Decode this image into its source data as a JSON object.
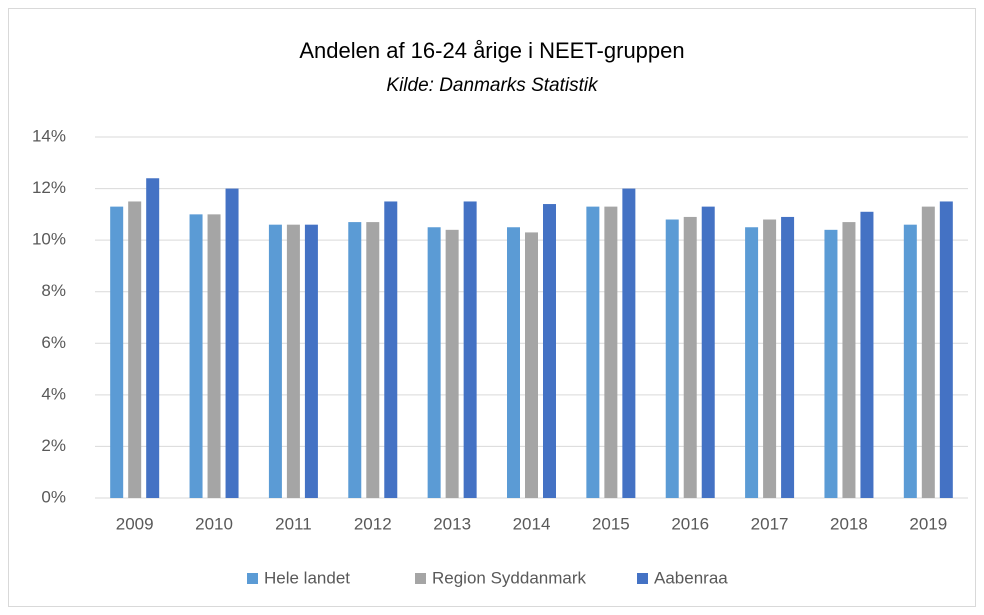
{
  "chart_data": {
    "type": "bar",
    "title": "Andelen af 16-24 årige i NEET-gruppen",
    "subtitle": "Kilde: Danmarks Statistik",
    "categories": [
      "2009",
      "2010",
      "2011",
      "2012",
      "2013",
      "2014",
      "2015",
      "2016",
      "2017",
      "2018",
      "2019"
    ],
    "series": [
      {
        "name": "Hele landet",
        "color": "#5b9bd5",
        "values": [
          11.3,
          11.0,
          10.6,
          10.7,
          10.5,
          10.5,
          11.3,
          10.8,
          10.5,
          10.4,
          10.6
        ]
      },
      {
        "name": "Region Syddanmark",
        "color": "#a5a5a5",
        "values": [
          11.5,
          11.0,
          10.6,
          10.7,
          10.4,
          10.3,
          11.3,
          10.9,
          10.8,
          10.7,
          11.3
        ]
      },
      {
        "name": "Aabenraa",
        "color": "#4472c4",
        "values": [
          12.4,
          12.0,
          10.6,
          11.5,
          11.5,
          11.4,
          12.0,
          11.3,
          10.9,
          11.1,
          11.5
        ]
      }
    ],
    "ylim": [
      0,
      14
    ],
    "yticks": [
      {
        "value": 0,
        "label": "0%"
      },
      {
        "value": 2,
        "label": "2%"
      },
      {
        "value": 4,
        "label": "4%"
      },
      {
        "value": 6,
        "label": "6%"
      },
      {
        "value": 8,
        "label": "8%"
      },
      {
        "value": 10,
        "label": "10%"
      },
      {
        "value": 12,
        "label": "12%"
      },
      {
        "value": 14,
        "label": "14%"
      }
    ],
    "grid": true,
    "legend": "bottom"
  }
}
